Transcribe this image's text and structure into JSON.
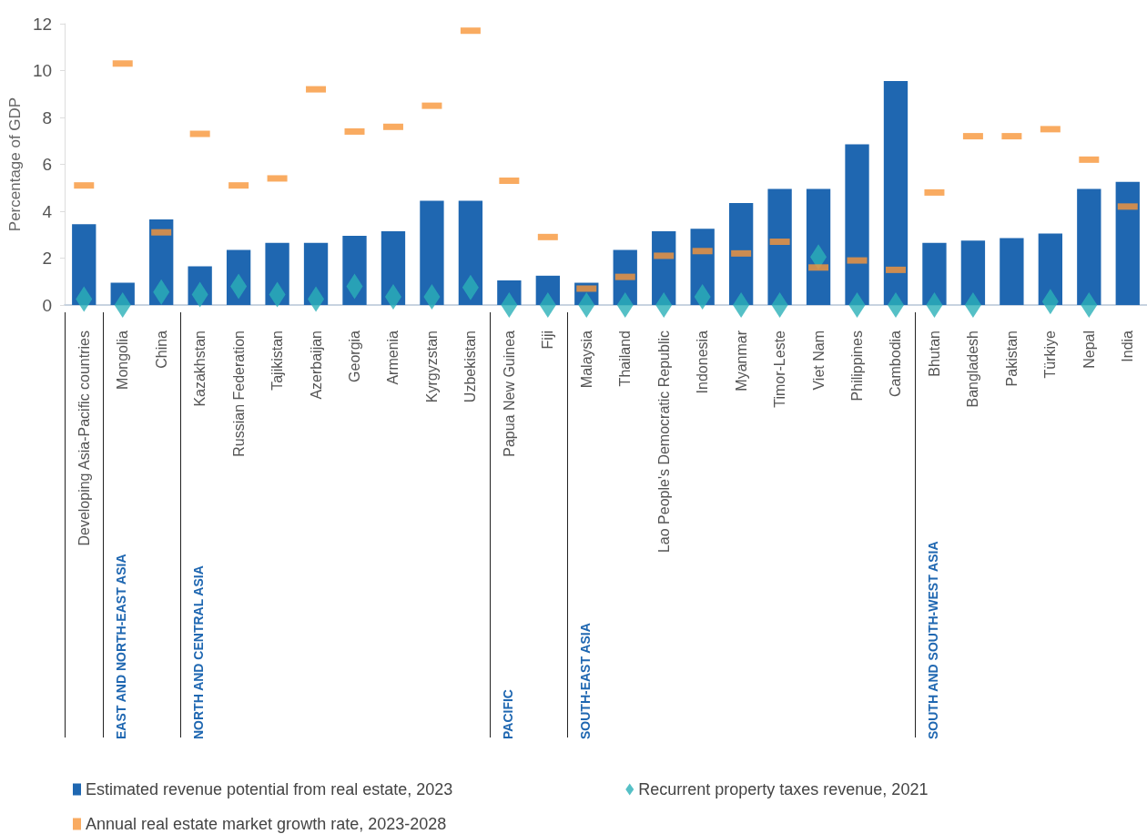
{
  "chart_data": {
    "type": "bar",
    "ylabel": "Percentage of GDP",
    "categories": [
      "Developing Asia-Pacific countries",
      "Mongolia",
      "China",
      "Kazakhstan",
      "Russian Federation",
      "Tajikistan",
      "Azerbaijan",
      "Georgia",
      "Armenia",
      "Kyrgyzstan",
      "Uzbekistan",
      "Papua New Guinea",
      "Fiji",
      "Malaysia",
      "Thailand",
      "Lao People's Democratic Republic",
      "Indonesia",
      "Myanmar",
      "Timor-Leste",
      "Viet Nam",
      "Philippines",
      "Cambodia",
      "Bhutan",
      "Bangladesh",
      "Pakistan",
      "Türkiye",
      "Nepal",
      "India"
    ],
    "series": [
      {
        "name": "Estimated revenue potential from real estate, 2023",
        "color": "#1f67b1",
        "values": [
          3.45,
          0.95,
          3.65,
          1.65,
          2.35,
          2.65,
          2.65,
          2.95,
          3.15,
          4.45,
          4.45,
          1.05,
          1.25,
          0.95,
          2.35,
          3.15,
          3.25,
          4.35,
          4.95,
          4.95,
          6.85,
          9.55,
          2.65,
          2.75,
          2.85,
          3.05,
          4.95,
          5.25
        ]
      },
      {
        "name": "Recurrent property taxes revenue, 2021",
        "type": "scatter",
        "marker": "diamond",
        "color": "#2ab0b8",
        "values": [
          0.25,
          0,
          0.55,
          0.45,
          0.8,
          0.45,
          0.25,
          0.8,
          0.35,
          0.35,
          0.75,
          0,
          0,
          0,
          0,
          0,
          0.35,
          0,
          0,
          2.05,
          0,
          0,
          0,
          0,
          null,
          0.15,
          0,
          null
        ]
      },
      {
        "name": "Annual real estate market growth rate, 2023-2028",
        "type": "scatter",
        "color": "#f7963a",
        "values": [
          5.1,
          10.3,
          3.1,
          7.3,
          5.1,
          5.4,
          9.2,
          7.4,
          7.6,
          8.5,
          11.7,
          5.3,
          2.9,
          0.7,
          1.2,
          2.1,
          2.3,
          2.2,
          2.7,
          1.6,
          1.9,
          1.5,
          4.8,
          7.2,
          7.2,
          7.5,
          6.2,
          4.2
        ]
      }
    ],
    "ylim": [
      0,
      12
    ],
    "yticks": [
      0,
      2,
      4,
      6,
      8,
      10,
      12
    ],
    "grid": false,
    "legend": "bottom",
    "annotations": [
      "EAST AND NORTH-EAST ASIA",
      "NORTH AND CENTRAL ASIA",
      "PACIFIC",
      "SOUTH-EAST ASIA",
      "SOUTH AND SOUTH-WEST ASIA"
    ]
  }
}
